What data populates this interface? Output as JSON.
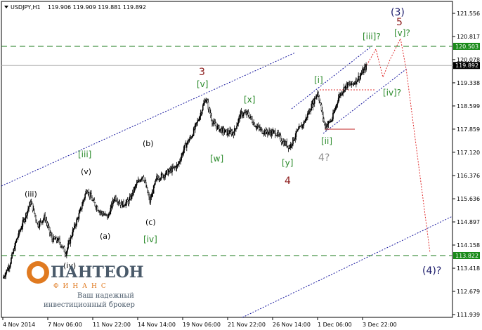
{
  "header": {
    "symbol_label": "USDJPY,H1",
    "ohlc_label": "119.906 119.909 119.881 119.892"
  },
  "chart_data": {
    "type": "candlestick",
    "symbol": "USDJPY",
    "timeframe": "H1",
    "ohlc": {
      "open": 119.906,
      "high": 119.909,
      "low": 119.881,
      "close": 119.892
    },
    "ylim": [
      111.9,
      121.6
    ],
    "y_ticks": [
      121.556,
      120.817,
      120.078,
      119.338,
      118.599,
      117.859,
      117.12,
      116.376,
      115.636,
      114.897,
      114.158,
      113.418,
      112.679,
      111.939
    ],
    "y_tick_labels": [
      "121.556",
      "120.817",
      "120.078",
      "119.338",
      "118.599",
      "117.859",
      "117.120",
      "116.376",
      "115.636",
      "114.897",
      "114.158",
      "113.418",
      "112.679",
      "111.939"
    ],
    "x_tick_labels": [
      "4 Nov 2014",
      "7 Nov 06:00",
      "11 Nov 22:00",
      "14 Nov 14:00",
      "19 Nov 06:00",
      "21 Nov 22:00",
      "26 Nov 14:00",
      "1 Dec 06:00",
      "3 Dec 22:00"
    ],
    "price_path": [
      [
        0,
        113.1
      ],
      [
        10,
        113.55
      ],
      [
        20,
        114.35
      ],
      [
        30,
        114.95
      ],
      [
        40,
        115.55
      ],
      [
        50,
        114.8
      ],
      [
        60,
        115.05
      ],
      [
        70,
        114.35
      ],
      [
        80,
        114.3
      ],
      [
        90,
        113.9
      ],
      [
        100,
        114.6
      ],
      [
        110,
        115.2
      ],
      [
        120,
        115.95
      ],
      [
        130,
        115.5
      ],
      [
        140,
        115.2
      ],
      [
        150,
        115.05
      ],
      [
        160,
        115.7
      ],
      [
        170,
        115.45
      ],
      [
        180,
        115.55
      ],
      [
        190,
        116.05
      ],
      [
        200,
        116.4
      ],
      [
        210,
        115.55
      ],
      [
        220,
        116.3
      ],
      [
        230,
        116.4
      ],
      [
        240,
        116.55
      ],
      [
        250,
        116.7
      ],
      [
        260,
        117.3
      ],
      [
        270,
        117.65
      ],
      [
        280,
        118.2
      ],
      [
        290,
        118.85
      ],
      [
        300,
        118.05
      ],
      [
        310,
        117.85
      ],
      [
        320,
        117.75
      ],
      [
        330,
        117.75
      ],
      [
        340,
        118.35
      ],
      [
        350,
        118.35
      ],
      [
        360,
        118.0
      ],
      [
        370,
        117.8
      ],
      [
        380,
        117.75
      ],
      [
        390,
        117.75
      ],
      [
        400,
        117.45
      ],
      [
        410,
        117.3
      ],
      [
        420,
        117.75
      ],
      [
        430,
        118.05
      ],
      [
        440,
        118.55
      ],
      [
        450,
        119.05
      ],
      [
        460,
        117.95
      ],
      [
        470,
        118.15
      ],
      [
        480,
        118.9
      ],
      [
        490,
        119.25
      ],
      [
        500,
        119.3
      ],
      [
        510,
        119.55
      ],
      [
        520,
        119.89
      ]
    ],
    "levels": [
      {
        "label": "120.503",
        "value": 120.503
      },
      {
        "label": "113.822",
        "value": 113.822
      }
    ],
    "current_price": {
      "label": "119.892",
      "value": 119.892
    },
    "wave_labels": {
      "iii_lower": "(iii)",
      "v_lower": "(v)",
      "a_lower": "(a)",
      "b_lower": "(b)",
      "c_lower": "(c)",
      "iii_green": "[iii]",
      "iv_green": "[iv]",
      "v_green": "[v]",
      "w_green": "[w]",
      "x_green": "[x]",
      "y_green": "[y]",
      "i_green": "[i]",
      "ii_green": "[ii]",
      "iii_target": "[iii]?",
      "v_target": "[v]?",
      "iv_target": "[iv]?",
      "wave3": "3",
      "wave4": "4",
      "wave4_q": "4?",
      "wave5": "5",
      "wave3_paren": "(3)",
      "wave4_paren": "(4)?",
      "iv_paren": "(iv)"
    }
  },
  "logo": {
    "brand": "ПАНТЕОН",
    "subtitle": "ФИНАНС",
    "tagline1": "Ваш надежный",
    "tagline2": "инвестиционный брокер"
  },
  "colors": {
    "up_candle": "#000000",
    "level_line": "#1a7a1a",
    "level_label_bg": "#1a8a1a",
    "forecast": "#e03030",
    "channel": "#1a1aa0",
    "wave_green": "#2a8a2a",
    "wave_red": "#8b1a1a",
    "wave_navy": "#1a1a6a",
    "current_label_bg": "#000000",
    "logo_orange": "#e07a20"
  }
}
